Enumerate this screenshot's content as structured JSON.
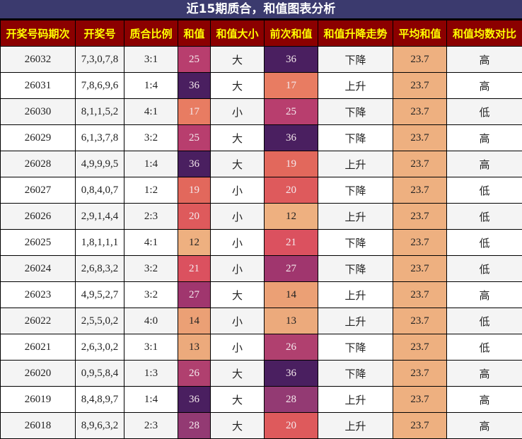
{
  "title": "近15期质合，和值图表分析",
  "headers": [
    "开奖号码期次",
    "开奖号",
    "质合比例",
    "和值",
    "和值大小",
    "前次和值",
    "和值升降走势",
    "平均和值",
    "和值均数对比"
  ],
  "colors": {
    "12": "#eeb080",
    "13": "#ecaa7c",
    "14": "#eba075",
    "17": "#e87c62",
    "19": "#e2685c",
    "20": "#de5a5c",
    "21": "#db515f",
    "25": "#b83e6e",
    "26": "#b0406f",
    "27": "#a0366e",
    "28": "#933a73",
    "36": "#4a1f60",
    "header_bg": "#8b0000",
    "header_text": "#ffff00",
    "title_bg": "#3b3a6e"
  },
  "rows": [
    [
      "26032",
      "7,3,0,7,8",
      "3:1",
      "25",
      "大",
      "36",
      "下降",
      "23.7",
      "高"
    ],
    [
      "26031",
      "7,8,6,9,6",
      "1:4",
      "36",
      "大",
      "17",
      "上升",
      "23.7",
      "高"
    ],
    [
      "26030",
      "8,1,1,5,2",
      "4:1",
      "17",
      "小",
      "25",
      "下降",
      "23.7",
      "低"
    ],
    [
      "26029",
      "6,1,3,7,8",
      "3:2",
      "25",
      "大",
      "36",
      "下降",
      "23.7",
      "高"
    ],
    [
      "26028",
      "4,9,9,9,5",
      "1:4",
      "36",
      "大",
      "19",
      "上升",
      "23.7",
      "高"
    ],
    [
      "26027",
      "0,8,4,0,7",
      "1:2",
      "19",
      "小",
      "20",
      "下降",
      "23.7",
      "低"
    ],
    [
      "26026",
      "2,9,1,4,4",
      "2:3",
      "20",
      "小",
      "12",
      "上升",
      "23.7",
      "低"
    ],
    [
      "26025",
      "1,8,1,1,1",
      "4:1",
      "12",
      "小",
      "21",
      "下降",
      "23.7",
      "低"
    ],
    [
      "26024",
      "2,6,8,3,2",
      "3:2",
      "21",
      "小",
      "27",
      "下降",
      "23.7",
      "低"
    ],
    [
      "26023",
      "4,9,5,2,7",
      "3:2",
      "27",
      "大",
      "14",
      "上升",
      "23.7",
      "高"
    ],
    [
      "26022",
      "2,5,5,0,2",
      "4:0",
      "14",
      "小",
      "13",
      "上升",
      "23.7",
      "低"
    ],
    [
      "26021",
      "2,6,3,0,2",
      "3:1",
      "13",
      "小",
      "26",
      "下降",
      "23.7",
      "低"
    ],
    [
      "26020",
      "0,9,5,8,4",
      "1:3",
      "26",
      "大",
      "36",
      "下降",
      "23.7",
      "高"
    ],
    [
      "26019",
      "8,4,8,9,7",
      "1:4",
      "36",
      "大",
      "28",
      "上升",
      "23.7",
      "高"
    ],
    [
      "26018",
      "8,9,6,3,2",
      "2:3",
      "28",
      "大",
      "20",
      "上升",
      "23.7",
      "高"
    ]
  ]
}
